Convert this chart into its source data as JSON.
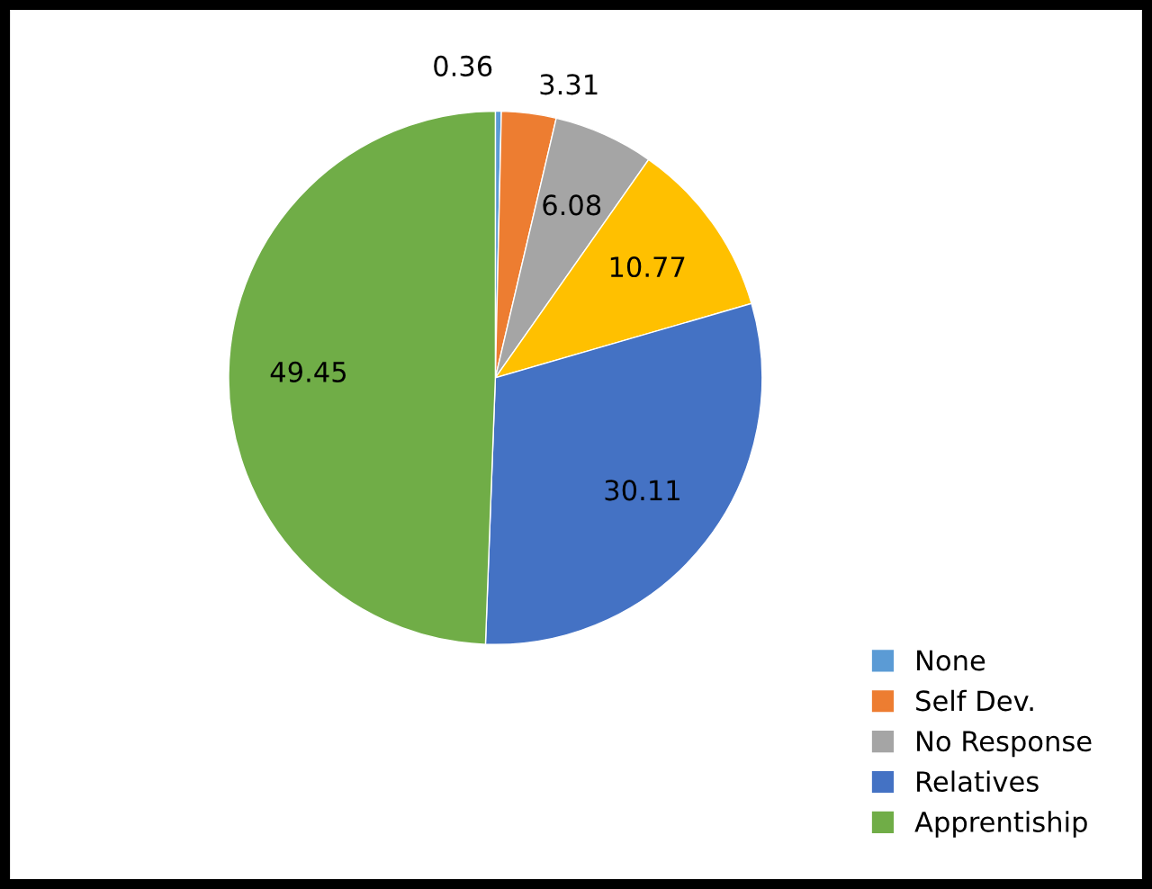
{
  "chart_data": {
    "type": "pie",
    "categories": [
      "None",
      "Self Dev.",
      "No Response",
      null,
      "Relatives",
      "Apprentiship"
    ],
    "values": [
      0.36,
      3.31,
      6.08,
      10.77,
      30.11,
      49.45
    ],
    "colors": [
      "#5b9bd5",
      "#ed7d31",
      "#a5a5a5",
      "#ffc000",
      "#4472c4",
      "#70ad47"
    ],
    "data_labels": true,
    "legend": "bottom right"
  }
}
